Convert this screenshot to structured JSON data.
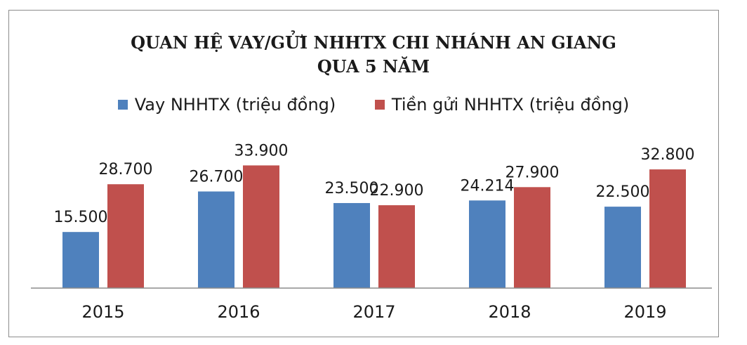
{
  "chart_data": {
    "type": "bar",
    "title_lines": [
      "QUAN HỆ VAY/GỬI NHHTX CHI NHÁNH AN GIANG",
      "QUA 5 NĂM"
    ],
    "categories": [
      "2015",
      "2016",
      "2017",
      "2018",
      "2019"
    ],
    "series": [
      {
        "name": "Vay NHHTX (triệu đồng)",
        "color": "#4f81bd",
        "values": [
          15.5,
          26.7,
          23.5,
          24.214,
          22.5
        ],
        "labels": [
          "15.500",
          "26.700",
          "23.500",
          "24.214",
          "22.500"
        ]
      },
      {
        "name": "Tiền gửi NHHTX (triệu đồng)",
        "color": "#c0504d",
        "values": [
          28.7,
          33.9,
          22.9,
          27.9,
          32.8
        ],
        "labels": [
          "28.700",
          "33.900",
          "22.900",
          "27.900",
          "32.800"
        ]
      }
    ],
    "xlabel": "",
    "ylabel": "",
    "ylim": [
      0,
      40
    ],
    "grid": false,
    "legend_position": "top"
  }
}
